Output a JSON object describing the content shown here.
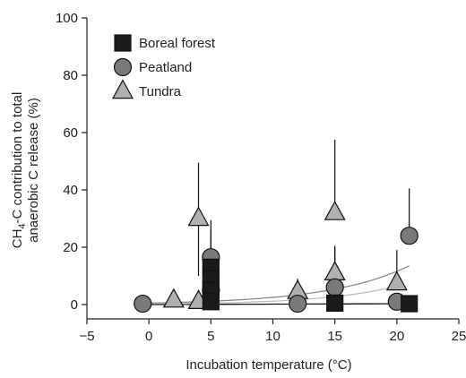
{
  "chart_data": {
    "type": "scatter",
    "xlabel": "Incubation temperature (°C)",
    "ylabel_line1": "CH₄-C contribution to total",
    "ylabel_line2": "anaerobic C release (%)",
    "xlim": [
      -5,
      25
    ],
    "ylim": [
      -5,
      100
    ],
    "xticks": [
      -5,
      0,
      5,
      10,
      15,
      20,
      25
    ],
    "yticks": [
      0,
      20,
      40,
      60,
      80,
      100
    ],
    "grid": false,
    "legend_position": "top-left",
    "series": [
      {
        "name": "Boreal forest",
        "marker": "square",
        "color": "#1a1a1a",
        "points": [
          {
            "x": 5,
            "y": 13,
            "err_low": 0,
            "err_high": 13
          },
          {
            "x": 5,
            "y": 9,
            "err_low": 0,
            "err_high": 0
          },
          {
            "x": 5,
            "y": 5,
            "err_low": 0,
            "err_high": 0
          },
          {
            "x": 5,
            "y": 1,
            "err_low": 0,
            "err_high": 0
          },
          {
            "x": 15,
            "y": 0.5,
            "err_low": 0,
            "err_high": 0
          },
          {
            "x": 21,
            "y": 0.3,
            "err_low": 0,
            "err_high": 0
          }
        ],
        "fit": [
          [
            -0.5,
            0
          ],
          [
            21,
            0.3
          ]
        ]
      },
      {
        "name": "Peatland",
        "marker": "circle",
        "color": "#7a7a7a",
        "points": [
          {
            "x": -0.5,
            "y": 0.3,
            "err_low": 0,
            "err_high": 0
          },
          {
            "x": 5,
            "y": 16.5,
            "err_low": 13,
            "err_high": 13
          },
          {
            "x": 5,
            "y": 5,
            "err_low": 0,
            "err_high": 0
          },
          {
            "x": 12,
            "y": 0.3,
            "err_low": 0,
            "err_high": 0
          },
          {
            "x": 15,
            "y": 6,
            "err_low": 0,
            "err_high": 14
          },
          {
            "x": 20,
            "y": 1,
            "err_low": 0,
            "err_high": 0
          },
          {
            "x": 21,
            "y": 24,
            "err_low": 0,
            "err_high": 16.5
          }
        ],
        "fit": [
          [
            -0.5,
            0.5
          ],
          [
            21,
            13.5
          ]
        ]
      },
      {
        "name": "Tundra",
        "marker": "triangle",
        "color": "#b0b0b0",
        "points": [
          {
            "x": 2,
            "y": 1.5,
            "err_low": 0,
            "err_high": 0
          },
          {
            "x": 4,
            "y": 1,
            "err_low": 0,
            "err_high": 0
          },
          {
            "x": 4,
            "y": 30,
            "err_low": 20,
            "err_high": 19.5
          },
          {
            "x": 12,
            "y": 4.5,
            "err_low": 0,
            "err_high": 4.5
          },
          {
            "x": 15,
            "y": 32,
            "err_low": 0,
            "err_high": 25.5
          },
          {
            "x": 15,
            "y": 11,
            "err_low": 0,
            "err_high": 9.5
          },
          {
            "x": 20,
            "y": 7.5,
            "err_low": 0,
            "err_high": 11.5
          }
        ],
        "fit": [
          [
            2,
            0.3
          ],
          [
            20,
            6.5
          ]
        ]
      }
    ]
  }
}
